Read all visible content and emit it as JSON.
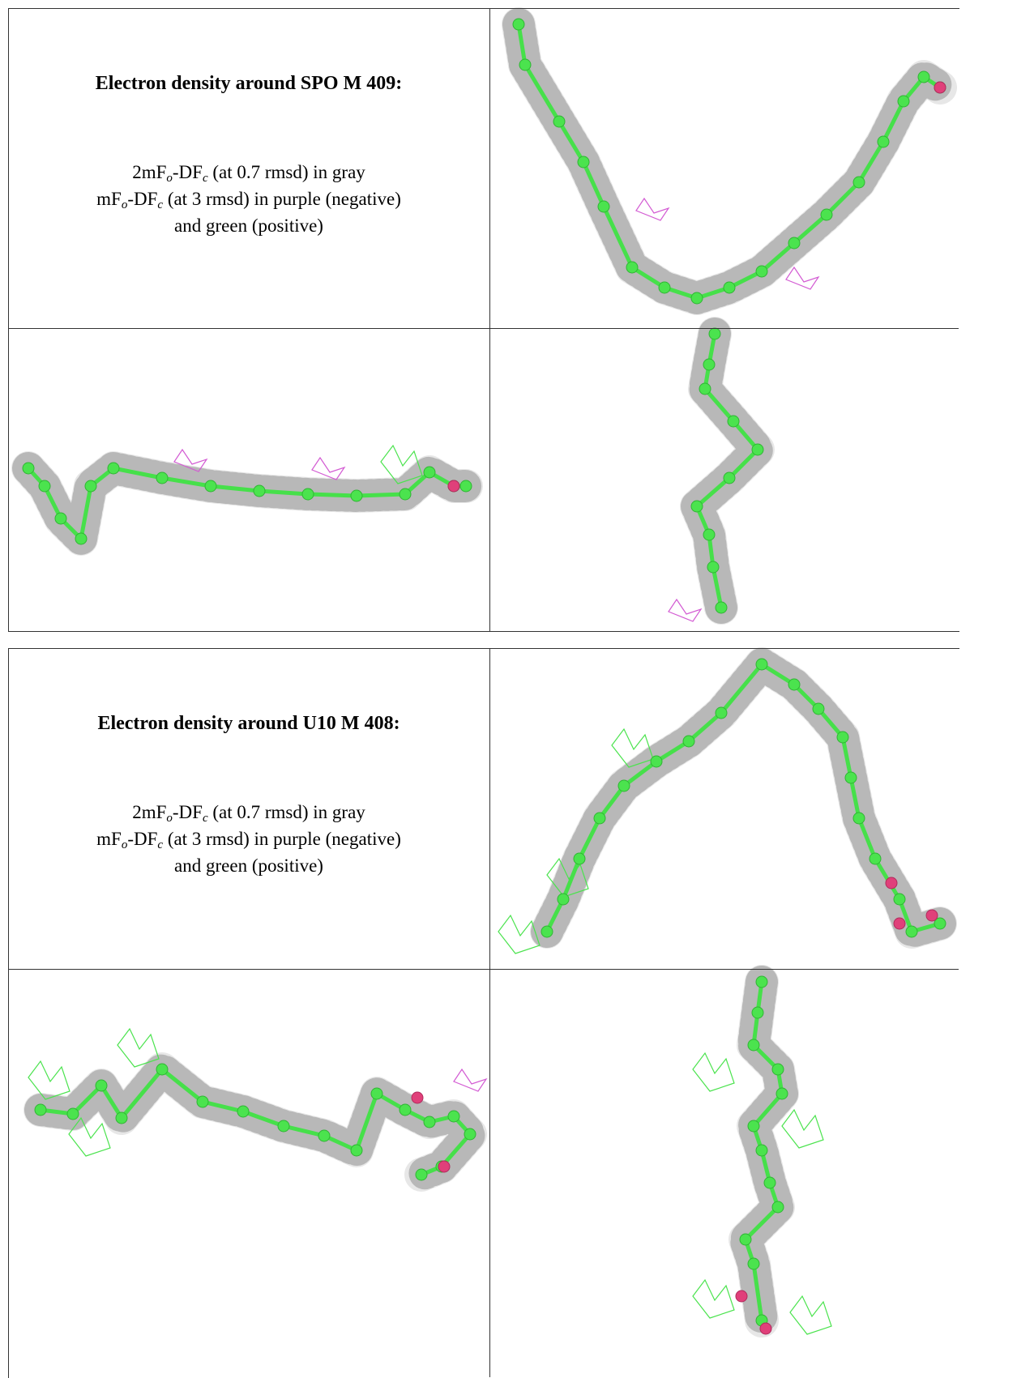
{
  "tables": [
    {
      "heading": "Electron density around SPO M 409:",
      "legend": [
        [
          "2mF",
          "o",
          "-DF",
          "c",
          " (at 0.7 rmsd) in gray"
        ],
        [
          "mF",
          "o",
          "-DF",
          "c",
          " (at 3 rmsd) in purple (negative)"
        ],
        [
          "and green (positive)"
        ]
      ]
    },
    {
      "heading": "Electron density around U10 M 408:",
      "legend": [
        [
          "2mF",
          "o",
          "-DF",
          "c",
          " (at 0.7 rmsd) in gray"
        ],
        [
          "mF",
          "o",
          "-DF",
          "c",
          " (at 3 rmsd) in purple (negative)"
        ],
        [
          "and green (positive)"
        ]
      ]
    }
  ]
}
